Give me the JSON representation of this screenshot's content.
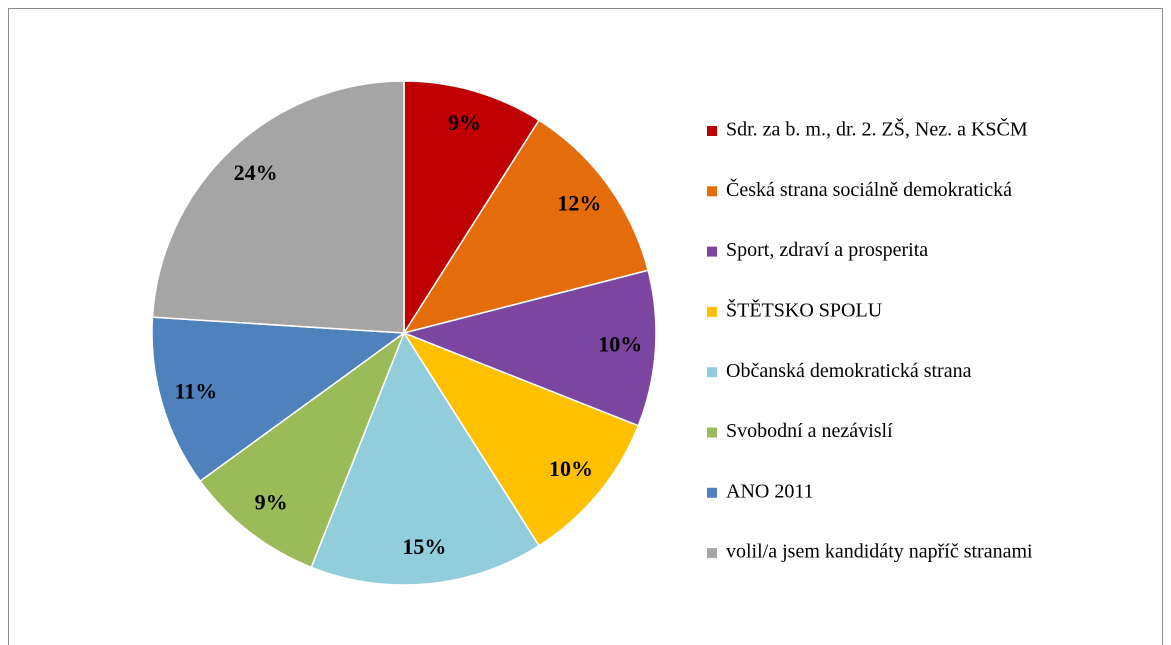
{
  "chart_data": {
    "type": "pie",
    "categories": [
      "Sdr. za b. m., dr. 2. ZŠ, Nez. a KSČM",
      "Česká strana sociálně demokratická",
      "Sport, zdraví a prosperita",
      "ŠTĚTSKO SPOLU",
      "Občanská demokratická strana",
      "Svobodní a nezávislí",
      "ANO 2011",
      "volil/a jsem kandidáty napříč stranami"
    ],
    "values": [
      9,
      12,
      10,
      10,
      15,
      9,
      11,
      24
    ],
    "value_labels": [
      "9%",
      "12%",
      "10%",
      "10%",
      "15%",
      "9%",
      "11%",
      "24%"
    ],
    "colors": [
      "#c00000",
      "#e46c0a",
      "#7b45a0",
      "#ffc000",
      "#92cddc",
      "#9bbb59",
      "#4f81bd",
      "#a5a5a5"
    ],
    "legend": "right"
  }
}
